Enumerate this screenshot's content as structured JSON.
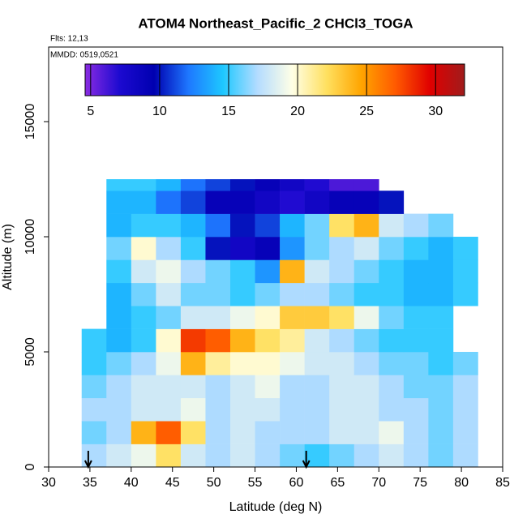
{
  "chart_data": {
    "type": "heatmap",
    "title": "ATOM4 Northeast_Pacific_2 CHCl3_TOGA",
    "annotations": [
      "Flts: 12,13",
      "MMDD: 0519,0521"
    ],
    "x_label": "Latitude (deg N)",
    "y_label": "Altitude (m)",
    "xlim": [
      30,
      85
    ],
    "xticks": [
      30,
      35,
      40,
      45,
      50,
      55,
      60,
      65,
      70,
      75,
      80,
      85
    ],
    "ylim": [
      0,
      18240
    ],
    "yticks": [
      0,
      5000,
      10000,
      15000
    ],
    "x_bins": [
      34,
      37,
      40,
      43,
      46,
      49,
      52,
      55,
      58,
      61,
      64,
      67,
      70,
      73,
      76,
      79,
      82
    ],
    "y_bins": [
      0,
      1000,
      2000,
      3000,
      4000,
      5000,
      6000,
      7000,
      8000,
      9000,
      10000,
      11000,
      12000,
      12500
    ],
    "values": [
      [
        17,
        18,
        19,
        22,
        18,
        17,
        18,
        17,
        16,
        15,
        16,
        17,
        18,
        17,
        16,
        17
      ],
      [
        16,
        17,
        24,
        27,
        22,
        17,
        18,
        17,
        17,
        17,
        18,
        18,
        19,
        17,
        16,
        17
      ],
      [
        17,
        17,
        18,
        18,
        19,
        17,
        18,
        18,
        17,
        17,
        18,
        18,
        17,
        17,
        16,
        17
      ],
      [
        16,
        17,
        18,
        18,
        18,
        17,
        18,
        19,
        17,
        17,
        18,
        18,
        17,
        16,
        16,
        17
      ],
      [
        15,
        16,
        17,
        19,
        24,
        21,
        20,
        20,
        19,
        18,
        18,
        17,
        16,
        16,
        15,
        16
      ],
      [
        15,
        14,
        15,
        20,
        28,
        27,
        24,
        22,
        21,
        18,
        17,
        16,
        15,
        15,
        15,
        null
      ],
      [
        null,
        14,
        15,
        16,
        18,
        18,
        19,
        20,
        23,
        23,
        22,
        19,
        16,
        15,
        15,
        null
      ],
      [
        null,
        14,
        16,
        18,
        16,
        16,
        15,
        16,
        17,
        17,
        16,
        15,
        15,
        14,
        14,
        15
      ],
      [
        null,
        15,
        18,
        19,
        17,
        16,
        15,
        13,
        24,
        18,
        17,
        16,
        15,
        14,
        14,
        15
      ],
      [
        null,
        16,
        20,
        17,
        15,
        10,
        8,
        9,
        13,
        16,
        17,
        18,
        16,
        15,
        14,
        15
      ],
      [
        null,
        14,
        15,
        15,
        14,
        12,
        10,
        11,
        14,
        16,
        22,
        24,
        18,
        17,
        16,
        null
      ],
      [
        null,
        14,
        14,
        12,
        11,
        9,
        9,
        8,
        7,
        8,
        9,
        9,
        10,
        null,
        null,
        null
      ],
      [
        null,
        15,
        15,
        14,
        12,
        11,
        10,
        9,
        8,
        7,
        6,
        6,
        null,
        null,
        null,
        null
      ]
    ],
    "clim": [
      4.6,
      32.1
    ],
    "colormap": [
      "#8a2be2",
      "#1c0ad0",
      "#0000b0",
      "#1e78ff",
      "#1ec8ff",
      "#b4dcff",
      "#ffffe6",
      "#ffe060",
      "#ffa500",
      "#ff5a00",
      "#e00000",
      "#a01c1c"
    ],
    "colorbar_ticks": [
      5,
      10,
      15,
      20,
      25,
      30
    ],
    "markers": [
      34.8,
      61.2
    ]
  }
}
